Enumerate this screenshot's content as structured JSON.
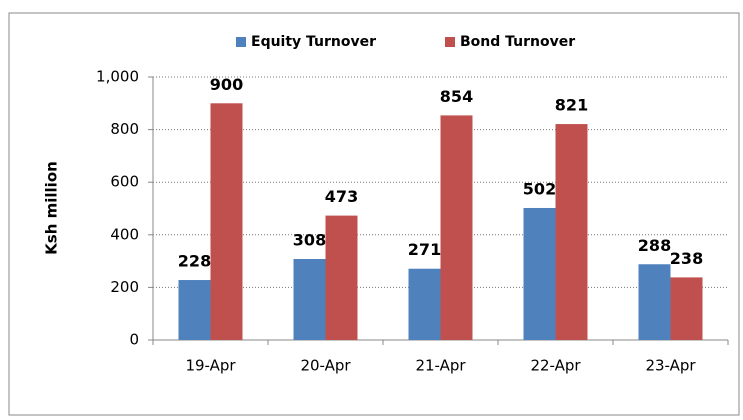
{
  "chart_data": {
    "type": "bar",
    "categories": [
      "19-Apr",
      "20-Apr",
      "21-Apr",
      "22-Apr",
      "23-Apr"
    ],
    "series": [
      {
        "name": "Equity Turnover",
        "color": "#4f81bd",
        "values": [
          228,
          308,
          271,
          502,
          288
        ]
      },
      {
        "name": "Bond Turnover",
        "color": "#c0504d",
        "values": [
          900,
          473,
          854,
          821,
          238
        ]
      }
    ],
    "y_label": "Ksh million",
    "ylim": [
      0,
      1000
    ],
    "yticks": [
      0,
      200,
      400,
      600,
      800,
      {
        "value": 1000,
        "label": "1,000"
      }
    ],
    "grid": true,
    "legend": "top"
  }
}
